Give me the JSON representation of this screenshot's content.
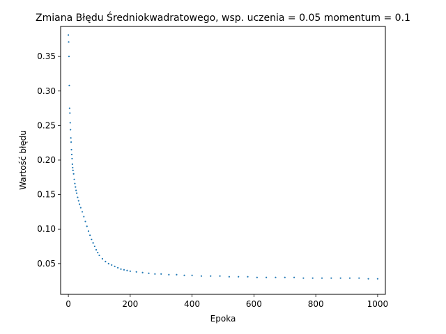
{
  "chart_data": {
    "type": "scatter",
    "title": "Zmiana Błędu Średniokwadratowego, wsp. uczenia = 0.05 momentum = 0.1",
    "xlabel": "Epoka",
    "ylabel": "Wartość błędu",
    "xlim": [
      -25,
      1025
    ],
    "ylim": [
      0.0055,
      0.3935
    ],
    "xticks": [
      0,
      200,
      400,
      600,
      800,
      1000
    ],
    "yticks": [
      0.05,
      0.1,
      0.15,
      0.2,
      0.25,
      0.3,
      0.35
    ],
    "xtick_labels": [
      "0",
      "200",
      "400",
      "600",
      "800",
      "1000"
    ],
    "ytick_labels": [
      "0.05",
      "0.10",
      "0.15",
      "0.20",
      "0.25",
      "0.30",
      "0.35"
    ],
    "grid": false,
    "marker_color": "#1f77b4",
    "series": [
      {
        "x": [
          0,
          1,
          2,
          3,
          4,
          5,
          6,
          7,
          8,
          9,
          10,
          11,
          12,
          13,
          14,
          15,
          17,
          19,
          21,
          23,
          25,
          27,
          30,
          33,
          36,
          40,
          45,
          50,
          55,
          60,
          65,
          70,
          75,
          80,
          85,
          90,
          95,
          100,
          110,
          120,
          130,
          140,
          150,
          160,
          170,
          180,
          190,
          200,
          220,
          240,
          260,
          280,
          300,
          325,
          350,
          375,
          400,
          430,
          460,
          490,
          520,
          550,
          580,
          610,
          640,
          670,
          700,
          730,
          760,
          790,
          820,
          850,
          880,
          910,
          940,
          970,
          1000
        ],
        "y": [
          0.381,
          0.371,
          0.35,
          0.308,
          0.275,
          0.268,
          0.254,
          0.244,
          0.232,
          0.226,
          0.215,
          0.208,
          0.202,
          0.194,
          0.189,
          0.185,
          0.18,
          0.172,
          0.166,
          0.161,
          0.156,
          0.152,
          0.146,
          0.141,
          0.136,
          0.131,
          0.125,
          0.118,
          0.111,
          0.104,
          0.097,
          0.091,
          0.085,
          0.08,
          0.075,
          0.07,
          0.066,
          0.062,
          0.057,
          0.053,
          0.05,
          0.048,
          0.046,
          0.044,
          0.042,
          0.041,
          0.04,
          0.039,
          0.038,
          0.037,
          0.036,
          0.035,
          0.035,
          0.034,
          0.034,
          0.033,
          0.033,
          0.032,
          0.032,
          0.032,
          0.031,
          0.031,
          0.031,
          0.03,
          0.03,
          0.03,
          0.03,
          0.03,
          0.029,
          0.029,
          0.029,
          0.029,
          0.029,
          0.029,
          0.029,
          0.028,
          0.028
        ]
      }
    ]
  }
}
